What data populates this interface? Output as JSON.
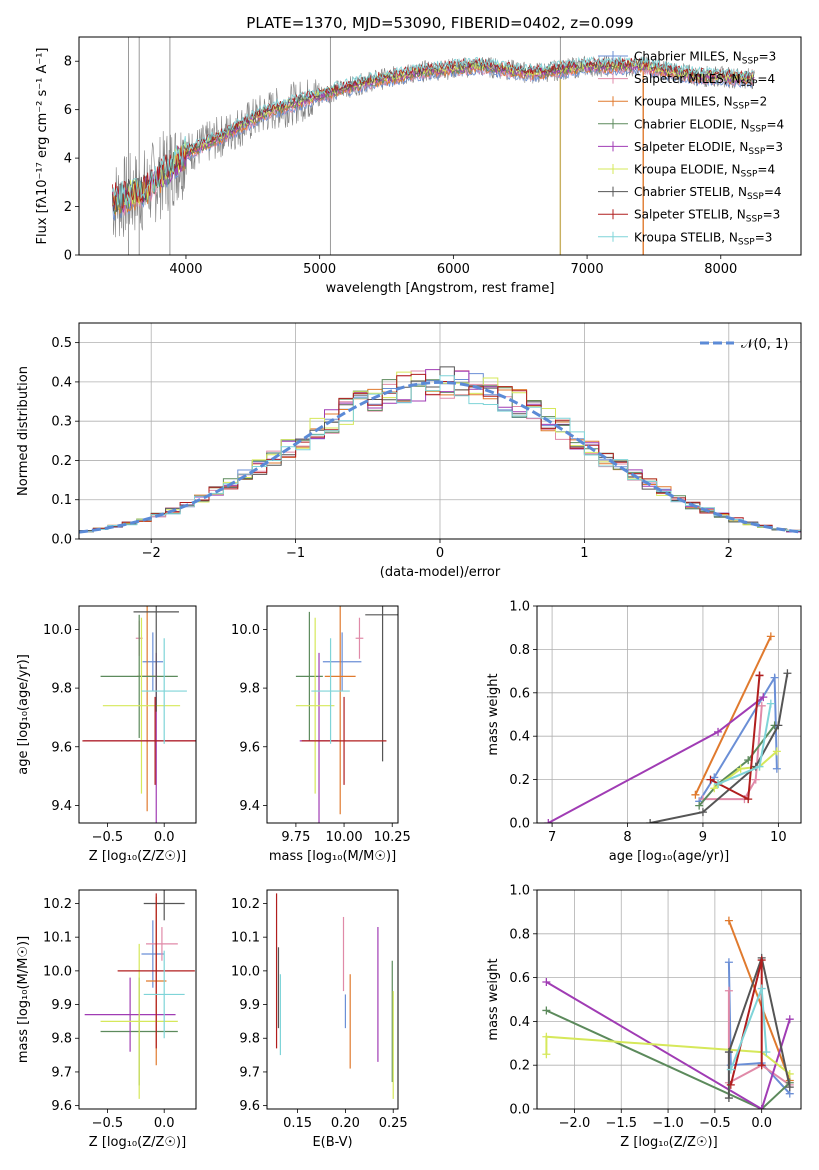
{
  "title": "PLATE=1370, MJD=53090, FIBERID=0402, z=0.099",
  "colors": {
    "chabrier_miles": "#6b8fd6",
    "salpeter_miles": "#e08aa8",
    "kroupa_miles": "#e07a2e",
    "chabrier_elodie": "#5c8a5c",
    "salpeter_elodie": "#a03cb4",
    "kroupa_elodie": "#d6e85a",
    "chabrier_stelib": "#555555",
    "salpeter_stelib": "#b01e1e",
    "kroupa_stelib": "#7fd4d8",
    "data": "#808080",
    "gaussian": "#5b8ad6"
  },
  "chart_data": [
    {
      "id": "spectrum",
      "type": "line",
      "xlabel": "wavelength [Angstrom, rest frame]",
      "ylabel": "Flux [f$_\\lambda$10$^{-17}$ erg cm$^{-2}$ s$^{-1}$ A$^{-1}$]",
      "xlim": [
        3200,
        8600
      ],
      "ylim": [
        0,
        9
      ],
      "xticks": [
        4000,
        5000,
        6000,
        7000,
        8000
      ],
      "yticks": [
        0,
        2,
        4,
        6,
        8
      ],
      "grid": false,
      "legend_position": "right",
      "legend": [
        {
          "label": "Chabrier MILES, N",
          "sub": "SSP",
          "suffix": "=3",
          "color_key": "chabrier_miles"
        },
        {
          "label": "Salpeter MILES, N",
          "sub": "SSP",
          "suffix": "=4",
          "color_key": "salpeter_miles"
        },
        {
          "label": "Kroupa MILES, N",
          "sub": "SSP",
          "suffix": "=2",
          "color_key": "kroupa_miles"
        },
        {
          "label": "Chabrier ELODIE, N",
          "sub": "SSP",
          "suffix": "=4",
          "color_key": "chabrier_elodie"
        },
        {
          "label": "Salpeter ELODIE, N",
          "sub": "SSP",
          "suffix": "=3",
          "color_key": "salpeter_elodie"
        },
        {
          "label": "Kroupa ELODIE, N",
          "sub": "SSP",
          "suffix": "=4",
          "color_key": "kroupa_elodie"
        },
        {
          "label": "Chabrier STELIB, N",
          "sub": "SSP",
          "suffix": "=4",
          "color_key": "chabrier_stelib"
        },
        {
          "label": "Salpeter STELIB, N",
          "sub": "SSP",
          "suffix": "=3",
          "color_key": "salpeter_stelib"
        },
        {
          "label": "Kroupa STELIB, N",
          "sub": "SSP",
          "suffix": "=3",
          "color_key": "kroupa_stelib"
        }
      ],
      "continuum": {
        "x": [
          3450,
          3700,
          4000,
          4300,
          4600,
          5000,
          5400,
          5800,
          6200,
          6600,
          7000,
          7400,
          7800,
          8200
        ],
        "y": [
          2.2,
          2.7,
          4.2,
          5.0,
          5.9,
          6.6,
          7.2,
          7.6,
          7.8,
          7.5,
          7.8,
          7.8,
          7.4,
          7.3
        ]
      }
    },
    {
      "id": "residuals",
      "type": "area",
      "xlabel": "(data-model)/error",
      "ylabel": "Normed distribution",
      "xlim": [
        -2.5,
        2.5
      ],
      "ylim": [
        0,
        0.55
      ],
      "xticks": [
        -2,
        -1,
        0,
        1,
        2
      ],
      "xticklabels": [
        "−2",
        "−1",
        "0",
        "1",
        "2"
      ],
      "yticks": [
        0,
        0.1,
        0.2,
        0.3,
        0.4,
        0.5
      ],
      "yticklabels": [
        "0.0",
        "0.1",
        "0.2",
        "0.3",
        "0.4",
        "0.5"
      ],
      "grid": true,
      "legend_label": "𝒩(0, 1)",
      "legend_position": "top-right"
    },
    {
      "id": "age-vs-Z",
      "type": "scatter",
      "xlabel": "Z [log₁₀(Z/Z☉)]",
      "ylabel": "age  [log₁₀(age/yr)]",
      "xlim": [
        -0.75,
        0.28
      ],
      "ylim": [
        9.34,
        10.08
      ],
      "xticks": [
        -0.5,
        0.0
      ],
      "xticklabels": [
        "−0.5",
        "0.0"
      ],
      "yticks": [
        9.4,
        9.6,
        9.8,
        10.0
      ],
      "yticklabels": [
        "9.4",
        "9.6",
        "9.8",
        "10.0"
      ],
      "points": [
        {
          "c": "chabrier_miles",
          "x": -0.1,
          "y": 9.89,
          "xe": 0.09,
          "ye": 0.1
        },
        {
          "c": "salpeter_miles",
          "x": -0.22,
          "y": 9.97,
          "xe": 0.03,
          "ye": 0.06
        },
        {
          "c": "kroupa_miles",
          "x": -0.15,
          "y": 9.84,
          "xe": 0.09,
          "ye": 0.46
        },
        {
          "c": "chabrier_elodie",
          "x": -0.22,
          "y": 9.84,
          "xe": 0.34,
          "ye": 0.21
        },
        {
          "c": "salpeter_elodie",
          "x": -0.07,
          "y": 9.62,
          "xe": 0.64,
          "ye": 0.3
        },
        {
          "c": "kroupa_elodie",
          "x": -0.2,
          "y": 9.74,
          "xe": 0.34,
          "ye": 0.3
        },
        {
          "c": "chabrier_stelib",
          "x": -0.07,
          "y": 10.06,
          "xe": 0.2,
          "ye": 0.34
        },
        {
          "c": "salpeter_stelib",
          "x": -0.08,
          "y": 9.62,
          "xe": 0.64,
          "ye": 0.15
        },
        {
          "c": "kroupa_stelib",
          "x": 0.0,
          "y": 9.79,
          "xe": 0.2,
          "ye": 0.18
        }
      ]
    },
    {
      "id": "age-vs-mass",
      "type": "scatter",
      "xlabel": "mass [log₁₀(M/M☉)]",
      "ylabel": "",
      "xlim": [
        9.6,
        10.28
      ],
      "ylim": [
        9.34,
        10.08
      ],
      "xticks": [
        9.75,
        10.0,
        10.25
      ],
      "xticklabels": [
        "9.75",
        "10.00",
        "10.25"
      ],
      "yticks": [
        9.4,
        9.6,
        9.8,
        10.0
      ],
      "yticklabels": [
        "9.4",
        "9.6",
        "9.8",
        "10.0"
      ],
      "points": [
        {
          "c": "chabrier_miles",
          "x": 9.99,
          "y": 9.89,
          "xe": 0.1,
          "ye": 0.1
        },
        {
          "c": "salpeter_miles",
          "x": 10.08,
          "y": 9.97,
          "xe": 0.02,
          "ye": 0.07
        },
        {
          "c": "kroupa_miles",
          "x": 9.98,
          "y": 9.84,
          "xe": 0.08,
          "ye": 0.47
        },
        {
          "c": "chabrier_elodie",
          "x": 9.82,
          "y": 9.84,
          "xe": 0.07,
          "ye": 0.22
        },
        {
          "c": "salpeter_elodie",
          "x": 9.87,
          "y": 9.62,
          "xe": 0.1,
          "ye": 0.3
        },
        {
          "c": "kroupa_elodie",
          "x": 9.85,
          "y": 9.74,
          "xe": 0.1,
          "ye": 0.3
        },
        {
          "c": "chabrier_stelib",
          "x": 10.2,
          "y": 10.05,
          "xe": 0.09,
          "ye": 0.5
        },
        {
          "c": "salpeter_stelib",
          "x": 10.0,
          "y": 9.62,
          "xe": 0.22,
          "ye": 0.15
        },
        {
          "c": "kroupa_stelib",
          "x": 9.93,
          "y": 9.79,
          "xe": 0.1,
          "ye": 0.18
        }
      ]
    },
    {
      "id": "mass-weight-vs-age",
      "type": "line",
      "xlabel": "age  [log₁₀(age/yr)]",
      "ylabel": "mass weight",
      "xlim": [
        6.8,
        10.3
      ],
      "ylim": [
        0,
        1
      ],
      "xticks": [
        7,
        8,
        9,
        10
      ],
      "xticklabels": [
        "7",
        "8",
        "9",
        "10"
      ],
      "yticks": [
        0,
        0.2,
        0.4,
        0.6,
        0.8,
        1.0
      ],
      "yticklabels": [
        "0.0",
        "0.2",
        "0.4",
        "0.6",
        "0.8",
        "1.0"
      ],
      "grid": true,
      "series": [
        {
          "c": "chabrier_miles",
          "x": [
            8.95,
            9.15,
            9.95,
            9.98
          ],
          "y": [
            0.1,
            0.21,
            0.67,
            0.25
          ]
        },
        {
          "c": "salpeter_miles",
          "x": [
            9.0,
            9.55,
            9.7,
            9.78
          ],
          "y": [
            0.11,
            0.11,
            0.2,
            0.54
          ]
        },
        {
          "c": "kroupa_miles",
          "x": [
            8.9,
            9.9
          ],
          "y": [
            0.13,
            0.86
          ]
        },
        {
          "c": "chabrier_elodie",
          "x": [
            8.95,
            9.2,
            9.6,
            9.95
          ],
          "y": [
            0.08,
            0.18,
            0.29,
            0.45
          ]
        },
        {
          "c": "salpeter_elodie",
          "x": [
            6.95,
            9.2,
            9.8
          ],
          "y": [
            0.0,
            0.42,
            0.58
          ]
        },
        {
          "c": "kroupa_elodie",
          "x": [
            9.15,
            9.5,
            9.75,
            9.98
          ],
          "y": [
            0.16,
            0.25,
            0.26,
            0.33
          ]
        },
        {
          "c": "chabrier_stelib",
          "x": [
            8.3,
            9.0,
            9.7,
            10.0,
            10.12
          ],
          "y": [
            0.0,
            0.05,
            0.26,
            0.45,
            0.69
          ]
        },
        {
          "c": "salpeter_stelib",
          "x": [
            9.1,
            9.6,
            9.75,
            9.75
          ],
          "y": [
            0.2,
            0.11,
            0.68,
            0.68
          ]
        },
        {
          "c": "kroupa_stelib",
          "x": [
            9.2,
            9.75,
            9.9
          ],
          "y": [
            0.18,
            0.26,
            0.55
          ]
        }
      ]
    },
    {
      "id": "mass-vs-Z",
      "type": "scatter",
      "xlabel": "Z [log₁₀(Z/Z☉)]",
      "ylabel": "mass [log₁₀(M/M☉)]",
      "xlim": [
        -0.75,
        0.28
      ],
      "ylim": [
        9.59,
        10.24
      ],
      "xticks": [
        -0.5,
        0.0
      ],
      "xticklabels": [
        "−0.5",
        "0.0"
      ],
      "yticks": [
        9.6,
        9.7,
        9.8,
        9.9,
        10.0,
        10.1,
        10.2
      ],
      "yticklabels": [
        "9.6",
        "9.7",
        "9.8",
        "9.9",
        "10.0",
        "10.1",
        "10.2"
      ],
      "points": [
        {
          "c": "chabrier_miles",
          "x": -0.1,
          "y": 10.05,
          "xe": 0.1,
          "ye": 0.1
        },
        {
          "c": "salpeter_miles",
          "x": -0.02,
          "y": 10.08,
          "xe": 0.14,
          "ye": 0.05
        },
        {
          "c": "kroupa_miles",
          "x": -0.07,
          "y": 9.97,
          "xe": 0.09,
          "ye": 0.25
        },
        {
          "c": "chabrier_elodie",
          "x": -0.22,
          "y": 9.82,
          "xe": 0.34,
          "ye": 0.16
        },
        {
          "c": "salpeter_elodie",
          "x": -0.3,
          "y": 9.87,
          "xe": 0.4,
          "ye": 0.11
        },
        {
          "c": "kroupa_elodie",
          "x": -0.22,
          "y": 9.85,
          "xe": 0.34,
          "ye": 0.23
        },
        {
          "c": "chabrier_stelib",
          "x": 0.0,
          "y": 10.2,
          "xe": 0.18,
          "ye": 0.05
        },
        {
          "c": "salpeter_stelib",
          "x": -0.07,
          "y": 10.0,
          "xe": 0.34,
          "ye": 0.23
        },
        {
          "c": "kroupa_stelib",
          "x": 0.0,
          "y": 9.93,
          "xe": 0.18,
          "ye": 0.13
        }
      ]
    },
    {
      "id": "mass-vs-ebv",
      "type": "scatter",
      "xlabel": "E(B-V)",
      "ylabel": "",
      "xlim": [
        0.118,
        0.255
      ],
      "ylim": [
        9.59,
        10.24
      ],
      "xticks": [
        0.15,
        0.2,
        0.25
      ],
      "xticklabels": [
        "0.15",
        "0.20",
        "0.25"
      ],
      "yticks": [
        9.6,
        9.7,
        9.8,
        9.9,
        10.0,
        10.1,
        10.2
      ],
      "yticklabels": [
        "9.6",
        "9.7",
        "9.8",
        "9.9",
        "10.0",
        "10.1",
        "10.2"
      ],
      "points": [
        {
          "c": "chabrier_miles",
          "x": 0.2,
          "y": 9.88,
          "xe": 0,
          "ye": 0.05
        },
        {
          "c": "salpeter_miles",
          "x": 0.198,
          "y": 10.05,
          "xe": 0,
          "ye": 0.11
        },
        {
          "c": "kroupa_miles",
          "x": 0.205,
          "y": 9.85,
          "xe": 0,
          "ye": 0.14
        },
        {
          "c": "chabrier_elodie",
          "x": 0.249,
          "y": 9.85,
          "xe": 0,
          "ye": 0.18
        },
        {
          "c": "salpeter_elodie",
          "x": 0.234,
          "y": 9.93,
          "xe": 0,
          "ye": 0.2
        },
        {
          "c": "kroupa_elodie",
          "x": 0.25,
          "y": 9.78,
          "xe": 0,
          "ye": 0.16
        },
        {
          "c": "chabrier_stelib",
          "x": 0.13,
          "y": 9.95,
          "xe": 0,
          "ye": 0.12
        },
        {
          "c": "salpeter_stelib",
          "x": 0.128,
          "y": 10.0,
          "xe": 0,
          "ye": 0.23
        },
        {
          "c": "kroupa_stelib",
          "x": 0.132,
          "y": 9.87,
          "xe": 0,
          "ye": 0.12
        }
      ]
    },
    {
      "id": "mass-weight-vs-Z",
      "type": "line",
      "xlabel": "Z [log₁₀(Z/Z☉)]",
      "ylabel": "mass weight",
      "xlim": [
        -2.4,
        0.42
      ],
      "ylim": [
        0,
        1
      ],
      "xticks": [
        -2.0,
        -1.5,
        -1.0,
        -0.5,
        0.0
      ],
      "xticklabels": [
        "−2.0",
        "−1.5",
        "−1.0",
        "−0.5",
        "0.0"
      ],
      "yticks": [
        0,
        0.2,
        0.4,
        0.6,
        0.8,
        1.0
      ],
      "yticklabels": [
        "0.0",
        "0.2",
        "0.4",
        "0.6",
        "0.8",
        "1.0"
      ],
      "grid": true,
      "series": [
        {
          "c": "chabrier_miles",
          "x": [
            -0.35,
            -0.33,
            0.0,
            0.3
          ],
          "y": [
            0.67,
            0.2,
            0.21,
            0.07
          ]
        },
        {
          "c": "salpeter_miles",
          "x": [
            -0.35,
            -0.35,
            0.0,
            0.3
          ],
          "y": [
            0.54,
            0.12,
            0.2,
            0.11
          ]
        },
        {
          "c": "kroupa_miles",
          "x": [
            -0.35,
            0.3
          ],
          "y": [
            0.86,
            0.13
          ]
        },
        {
          "c": "chabrier_elodie",
          "x": [
            -2.3,
            0.0,
            0.3
          ],
          "y": [
            0.45,
            0.0,
            0.12
          ]
        },
        {
          "c": "salpeter_elodie",
          "x": [
            -2.3,
            0.0,
            0.3
          ],
          "y": [
            0.58,
            0.0,
            0.41
          ]
        },
        {
          "c": "kroupa_elodie",
          "x": [
            -2.3,
            -2.3,
            0.0,
            0.3
          ],
          "y": [
            0.25,
            0.33,
            0.26,
            0.16
          ]
        },
        {
          "c": "chabrier_stelib",
          "x": [
            -0.35,
            -0.35,
            0.0,
            0.3
          ],
          "y": [
            0.05,
            0.26,
            0.69,
            0.1
          ]
        },
        {
          "c": "salpeter_stelib",
          "x": [
            -0.33,
            0.0,
            0.0
          ],
          "y": [
            0.11,
            0.68,
            0.2
          ]
        },
        {
          "c": "kroupa_stelib",
          "x": [
            -0.33,
            0.0,
            0.05
          ],
          "y": [
            0.18,
            0.55,
            0.26
          ]
        }
      ]
    }
  ]
}
